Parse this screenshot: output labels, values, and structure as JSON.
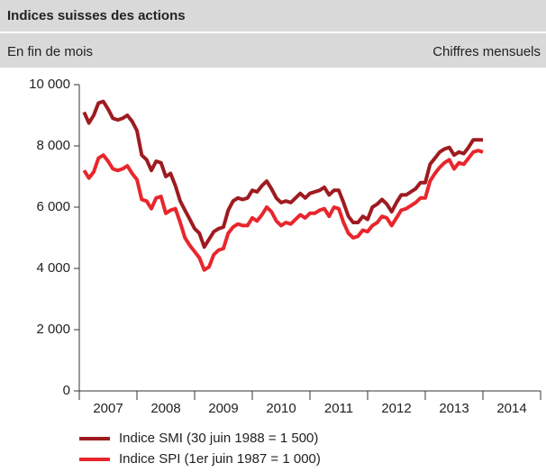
{
  "chart_data": {
    "type": "line",
    "title": "Indices suisses des actions",
    "subtitle": "En fin de mois",
    "note": "Chiffres mensuels",
    "x": [
      2007.083,
      2007.167,
      2007.25,
      2007.333,
      2007.417,
      2007.5,
      2007.583,
      2007.667,
      2007.75,
      2007.833,
      2007.917,
      2008,
      2008.083,
      2008.167,
      2008.25,
      2008.333,
      2008.417,
      2008.5,
      2008.583,
      2008.667,
      2008.75,
      2008.833,
      2008.917,
      2009,
      2009.083,
      2009.167,
      2009.25,
      2009.333,
      2009.417,
      2009.5,
      2009.583,
      2009.667,
      2009.75,
      2009.833,
      2009.917,
      2010,
      2010.083,
      2010.167,
      2010.25,
      2010.333,
      2010.417,
      2010.5,
      2010.583,
      2010.667,
      2010.75,
      2010.833,
      2010.917,
      2011,
      2011.083,
      2011.167,
      2011.25,
      2011.333,
      2011.417,
      2011.5,
      2011.583,
      2011.667,
      2011.75,
      2011.833,
      2011.917,
      2012,
      2012.083,
      2012.167,
      2012.25,
      2012.333,
      2012.417,
      2012.5,
      2012.583,
      2012.667,
      2012.75,
      2012.833,
      2012.917,
      2013,
      2013.083,
      2013.167,
      2013.25,
      2013.333,
      2013.417,
      2013.5,
      2013.583,
      2013.667,
      2013.75,
      2013.833,
      2013.917,
      2014
    ],
    "series": [
      {
        "name": "Indice SMI (30 juin 1988 = 1 500)",
        "color": "#9e1b20",
        "values": [
          9100,
          8750,
          9000,
          9400,
          9450,
          9200,
          8900,
          8850,
          8900,
          9000,
          8800,
          8500,
          7700,
          7550,
          7200,
          7500,
          7450,
          7000,
          7100,
          6700,
          6200,
          5900,
          5600,
          5300,
          5150,
          4700,
          4950,
          5200,
          5300,
          5350,
          5900,
          6200,
          6300,
          6250,
          6300,
          6550,
          6500,
          6700,
          6850,
          6600,
          6300,
          6150,
          6200,
          6150,
          6300,
          6450,
          6300,
          6450,
          6500,
          6550,
          6650,
          6400,
          6550,
          6550,
          6150,
          5700,
          5500,
          5500,
          5700,
          5600,
          6000,
          6100,
          6250,
          6100,
          5850,
          6150,
          6400,
          6400,
          6500,
          6600,
          6800,
          6800,
          7400,
          7600,
          7800,
          7900,
          7950,
          7700,
          7800,
          7750,
          7950,
          8200,
          8200,
          8200
        ]
      },
      {
        "name": "Indice SPI (1er juin 1987 = 1 000)",
        "color": "#e8262d",
        "values": [
          7200,
          6950,
          7150,
          7600,
          7700,
          7500,
          7250,
          7200,
          7250,
          7350,
          7100,
          6900,
          6250,
          6200,
          5950,
          6300,
          6350,
          5800,
          5900,
          5950,
          5500,
          5000,
          4750,
          4550,
          4350,
          3950,
          4050,
          4450,
          4600,
          4650,
          5150,
          5350,
          5450,
          5400,
          5400,
          5650,
          5550,
          5750,
          6000,
          5850,
          5550,
          5400,
          5500,
          5450,
          5600,
          5750,
          5650,
          5800,
          5800,
          5900,
          5950,
          5700,
          6000,
          5950,
          5500,
          5150,
          5000,
          5050,
          5250,
          5200,
          5400,
          5500,
          5700,
          5650,
          5400,
          5650,
          5900,
          5950,
          6050,
          6150,
          6300,
          6300,
          6850,
          7100,
          7300,
          7450,
          7550,
          7250,
          7450,
          7400,
          7600,
          7800,
          7850,
          7800
        ]
      }
    ],
    "xlim": [
      2007,
      2015
    ],
    "xticks": [
      2007,
      2008,
      2009,
      2010,
      2011,
      2012,
      2013,
      2014
    ],
    "ylim": [
      0,
      10000
    ],
    "yticks": [
      0,
      {
        "value": 2000,
        "label": "2 000"
      },
      {
        "value": 4000,
        "label": "4 000"
      },
      {
        "value": 6000,
        "label": "6 000"
      },
      {
        "value": 8000,
        "label": "8 000"
      },
      {
        "value": 10000,
        "label": "10 000"
      }
    ],
    "grid": false,
    "legend": "bottom"
  }
}
